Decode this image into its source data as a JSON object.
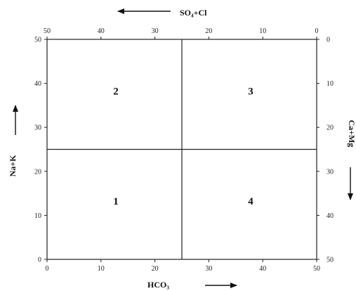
{
  "chart_data": {
    "type": "diagram",
    "axes": {
      "bottom": {
        "label": "HCO₃",
        "ticks": [
          0,
          10,
          20,
          30,
          40,
          50
        ],
        "range": [
          0,
          50
        ],
        "arrow": "right"
      },
      "top": {
        "label": "SO₄+Cl",
        "ticks": [
          50,
          40,
          30,
          20,
          10,
          0
        ],
        "range": [
          50,
          0
        ],
        "arrow": "left"
      },
      "left": {
        "label": "Na+K",
        "ticks": [
          0,
          10,
          20,
          30,
          40,
          50
        ],
        "range": [
          0,
          50
        ],
        "arrow": "up"
      },
      "right": {
        "label": "Ca+Mg",
        "ticks": [
          0,
          10,
          20,
          30,
          40,
          50
        ],
        "range": [
          0,
          50
        ],
        "arrow": "down"
      }
    },
    "divider_x": 25,
    "divider_y": 25,
    "quadrants": [
      {
        "label": "1",
        "x": 12.5,
        "y": 12.5
      },
      {
        "label": "2",
        "x": 12.5,
        "y": 37.5
      },
      {
        "label": "3",
        "x": 37.5,
        "y": 37.5
      },
      {
        "label": "4",
        "x": 37.5,
        "y": 12.5
      }
    ]
  }
}
